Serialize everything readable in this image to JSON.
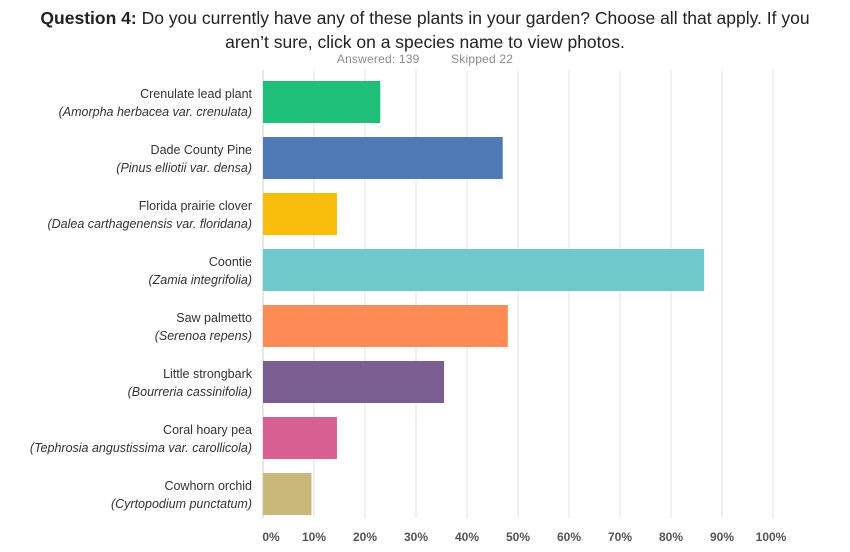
{
  "title": {
    "prefix": "Question 4:",
    "text": "Do you currently have any of these plants in your garden? Choose all that apply.  If you aren’t sure, click on a species name to view photos."
  },
  "stats": {
    "answered_label": "Answered:",
    "answered": "139",
    "skipped_label": "Skipped",
    "skipped": "22"
  },
  "chart_data": {
    "type": "bar",
    "orientation": "horizontal",
    "categories": [
      {
        "name": "Crenulate lead plant",
        "scientific": "(Amorpha  herbacea var. crenulata)"
      },
      {
        "name": "Dade County Pine",
        "scientific": "(Pinus elliotii var. densa)"
      },
      {
        "name": "Florida prairie clover",
        "scientific": "(Dalea carthagenensis var. floridana)"
      },
      {
        "name": "Coontie",
        "scientific": "(Zamia integrifolia)"
      },
      {
        "name": "Saw palmetto",
        "scientific": "(Serenoa repens)"
      },
      {
        "name": "Little strongbark",
        "scientific": "(Bourreria cassinifolia)"
      },
      {
        "name": "Coral hoary pea",
        "scientific": "(Tephrosia angustissima var. carollicola)"
      },
      {
        "name": "Cowhorn orchid",
        "scientific": "(Cyrtopodium punctatum)"
      }
    ],
    "values": [
      23,
      47,
      14.5,
      86.5,
      48,
      35.5,
      14.5,
      9.5
    ],
    "colors": [
      "#1fbf7a",
      "#4f7ab5",
      "#f7bd0a",
      "#6ec8cc",
      "#fd8b55",
      "#7a5e92",
      "#d75f91",
      "#c8b97b"
    ],
    "xlim": [
      0,
      100
    ],
    "ticks": [
      "0%",
      "10%",
      "20%",
      "30%",
      "40%",
      "50%",
      "60%",
      "70%",
      "80%",
      "90%",
      "100%"
    ],
    "grid": true
  }
}
